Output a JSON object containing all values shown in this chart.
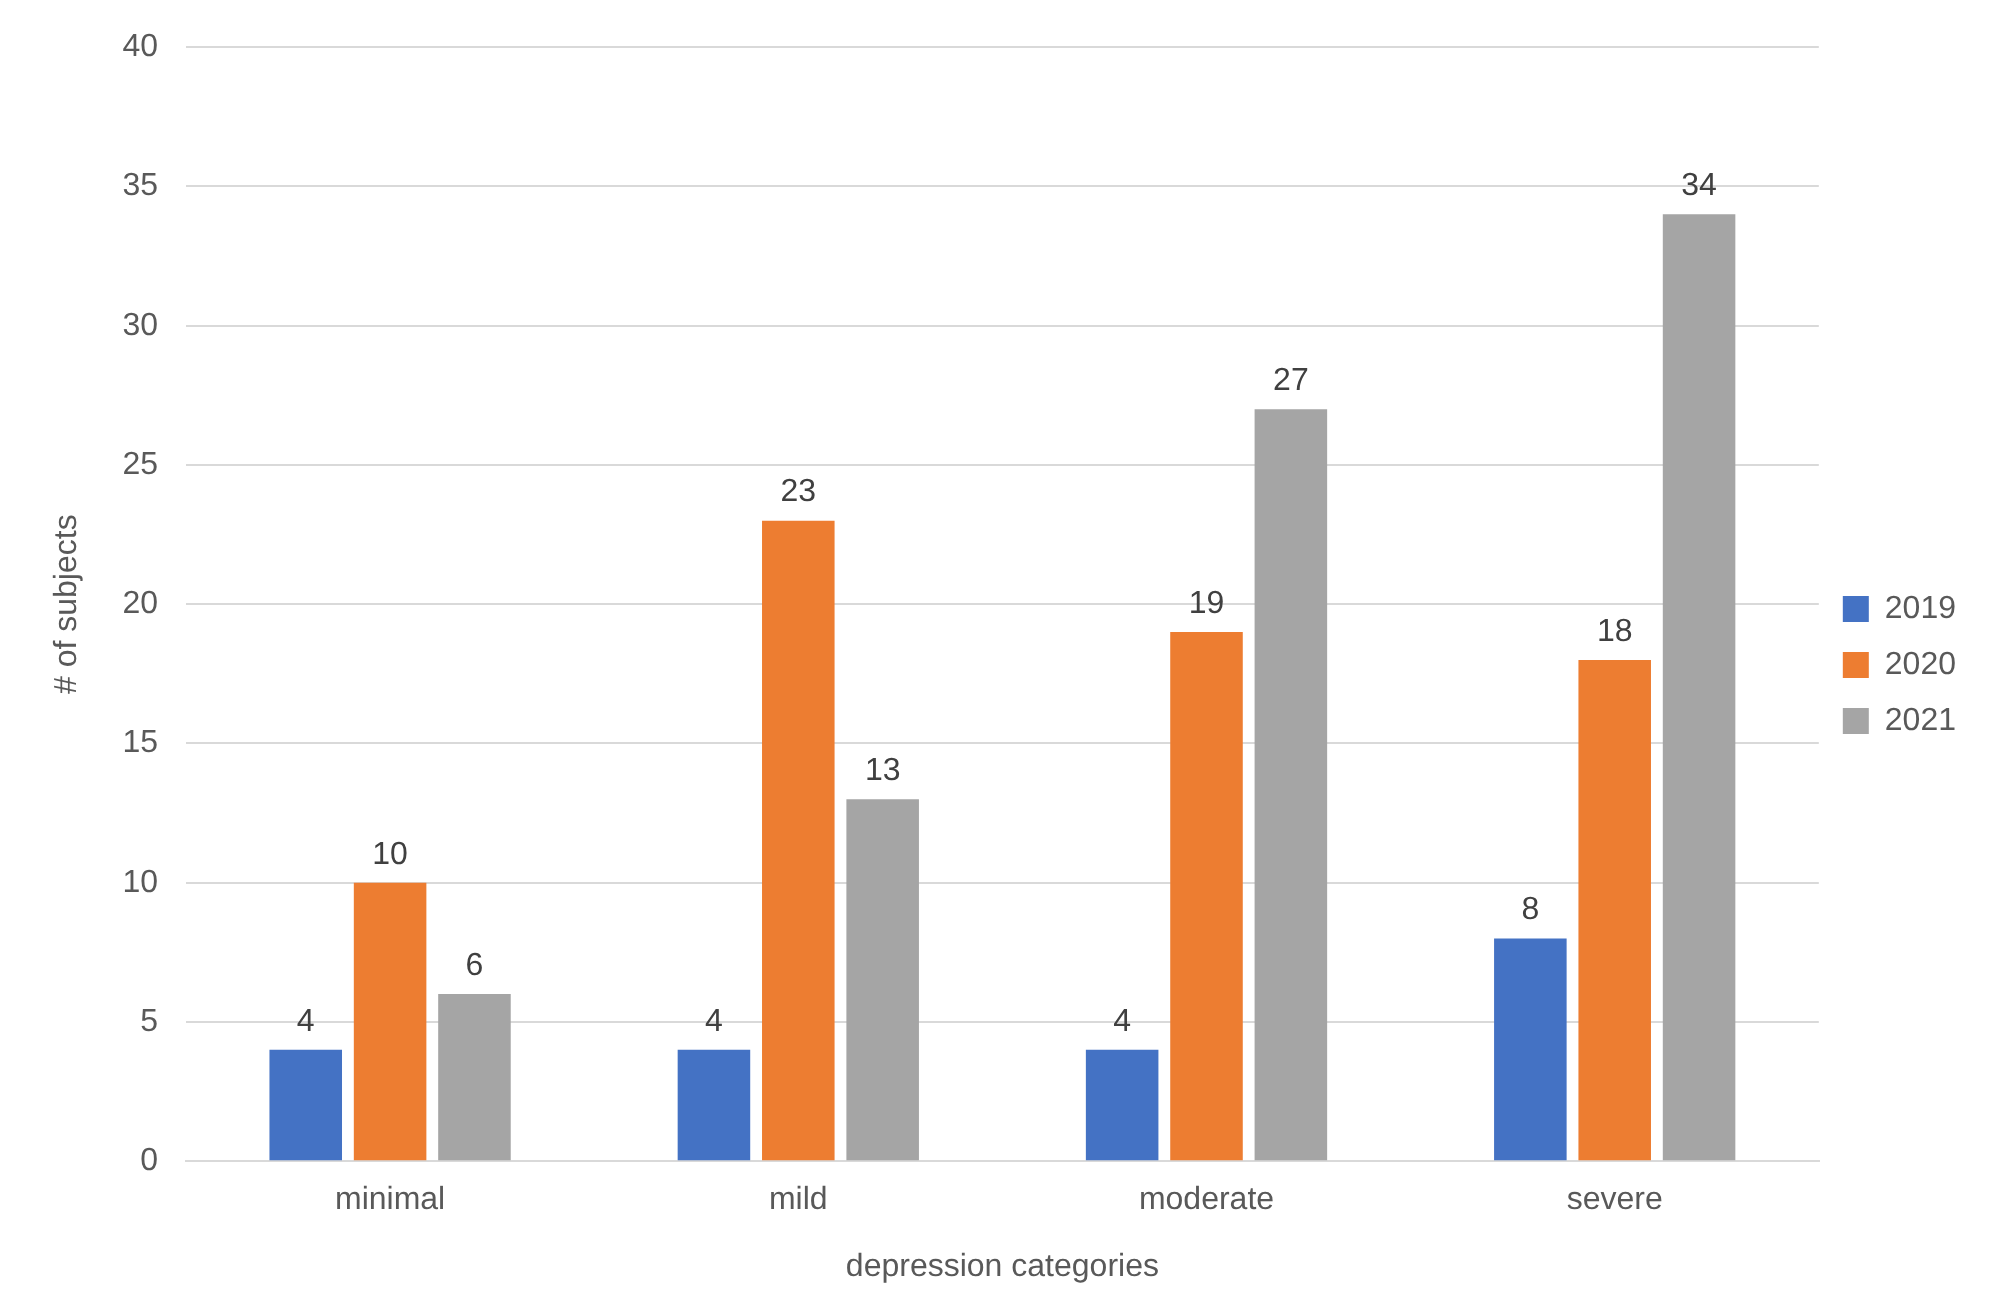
{
  "chart_data": {
    "type": "bar",
    "xlabel": "depression categories",
    "ylabel": "# of subjects",
    "categories": [
      "minimal",
      "mild",
      "moderate",
      "severe"
    ],
    "series": [
      {
        "name": "2019",
        "color": "#4472c4",
        "values": [
          4,
          4,
          4,
          8
        ]
      },
      {
        "name": "2020",
        "color": "#ed7d31",
        "values": [
          10,
          23,
          19,
          18
        ]
      },
      {
        "name": "2021",
        "color": "#a5a5a5",
        "values": [
          6,
          13,
          27,
          34
        ]
      }
    ],
    "ylim": [
      0,
      40
    ],
    "yticks": [
      0,
      5,
      10,
      15,
      20,
      25,
      30,
      35,
      40
    ],
    "grid": "y",
    "legend": "right",
    "data_labels": true
  }
}
